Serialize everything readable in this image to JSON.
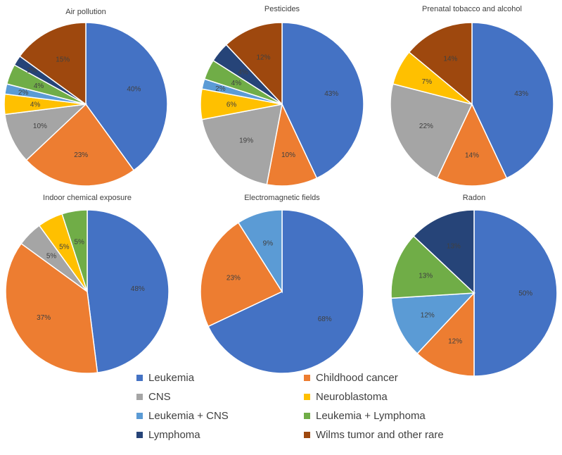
{
  "categories": [
    {
      "key": "leukemia",
      "label": "Leukemia",
      "color": "#4472C4"
    },
    {
      "key": "childhood",
      "label": "Childhood cancer",
      "color": "#ED7D31"
    },
    {
      "key": "cns",
      "label": "CNS",
      "color": "#A5A5A5"
    },
    {
      "key": "neuroblastoma",
      "label": "Neuroblastoma",
      "color": "#FFC000"
    },
    {
      "key": "leuk_cns",
      "label": "Leukemia + CNS",
      "color": "#5B9BD5"
    },
    {
      "key": "leuk_lymph",
      "label": "Leukemia + Lymphoma",
      "color": "#70AD47"
    },
    {
      "key": "lymphoma",
      "label": "Lymphoma",
      "color": "#264478"
    },
    {
      "key": "wilms",
      "label": "Wilms tumor and other rare",
      "color": "#9E480E"
    }
  ],
  "chart_data": [
    {
      "type": "pie",
      "title": "Air pollution",
      "slices": [
        {
          "category": "leukemia",
          "value": 40,
          "label": "40%"
        },
        {
          "category": "childhood",
          "value": 23,
          "label": "23%"
        },
        {
          "category": "cns",
          "value": 10,
          "label": "10%"
        },
        {
          "category": "neuroblastoma",
          "value": 4,
          "label": "4%"
        },
        {
          "category": "leuk_cns",
          "value": 2,
          "label": "2%"
        },
        {
          "category": "leuk_lymph",
          "value": 4,
          "label": "4%"
        },
        {
          "category": "lymphoma",
          "value": 2,
          "label": "2%"
        },
        {
          "category": "wilms",
          "value": 15,
          "label": "15%"
        }
      ]
    },
    {
      "type": "pie",
      "title": "Pesticides",
      "slices": [
        {
          "category": "leukemia",
          "value": 43,
          "label": "43%"
        },
        {
          "category": "childhood",
          "value": 10,
          "label": "10%"
        },
        {
          "category": "cns",
          "value": 19,
          "label": "19%"
        },
        {
          "category": "neuroblastoma",
          "value": 6,
          "label": "6%"
        },
        {
          "category": "leuk_cns",
          "value": 2,
          "label": "2%"
        },
        {
          "category": "leuk_lymph",
          "value": 4,
          "label": "4%"
        },
        {
          "category": "lymphoma",
          "value": 4,
          "label": "4%"
        },
        {
          "category": "wilms",
          "value": 12,
          "label": "12%"
        }
      ]
    },
    {
      "type": "pie",
      "title": "Prenatal tobacco and alcohol",
      "slices": [
        {
          "category": "leukemia",
          "value": 43,
          "label": "43%"
        },
        {
          "category": "childhood",
          "value": 14,
          "label": "14%"
        },
        {
          "category": "cns",
          "value": 22,
          "label": "22%"
        },
        {
          "category": "neuroblastoma",
          "value": 7,
          "label": "7%"
        },
        {
          "category": "wilms",
          "value": 14,
          "label": "14%"
        }
      ]
    },
    {
      "type": "pie",
      "title": "Indoor chemical exposure",
      "slices": [
        {
          "category": "leukemia",
          "value": 48,
          "label": "48%"
        },
        {
          "category": "childhood",
          "value": 37,
          "label": "37%"
        },
        {
          "category": "cns",
          "value": 5,
          "label": "5%"
        },
        {
          "category": "neuroblastoma",
          "value": 5,
          "label": "5%"
        },
        {
          "category": "leuk_lymph",
          "value": 5,
          "label": "5%"
        }
      ]
    },
    {
      "type": "pie",
      "title": "Electromagnetic fields",
      "slices": [
        {
          "category": "leukemia",
          "value": 68,
          "label": "68%"
        },
        {
          "category": "childhood",
          "value": 23,
          "label": "23%"
        },
        {
          "category": "leuk_cns",
          "value": 9,
          "label": "9%"
        }
      ]
    },
    {
      "type": "pie",
      "title": "Radon",
      "slices": [
        {
          "category": "leukemia",
          "value": 50,
          "label": "50%"
        },
        {
          "category": "childhood",
          "value": 12,
          "label": "12%"
        },
        {
          "category": "leuk_cns",
          "value": 12,
          "label": "12%"
        },
        {
          "category": "leuk_lymph",
          "value": 13,
          "label": "13%"
        },
        {
          "category": "lymphoma",
          "value": 13,
          "label": "13%"
        }
      ]
    }
  ]
}
